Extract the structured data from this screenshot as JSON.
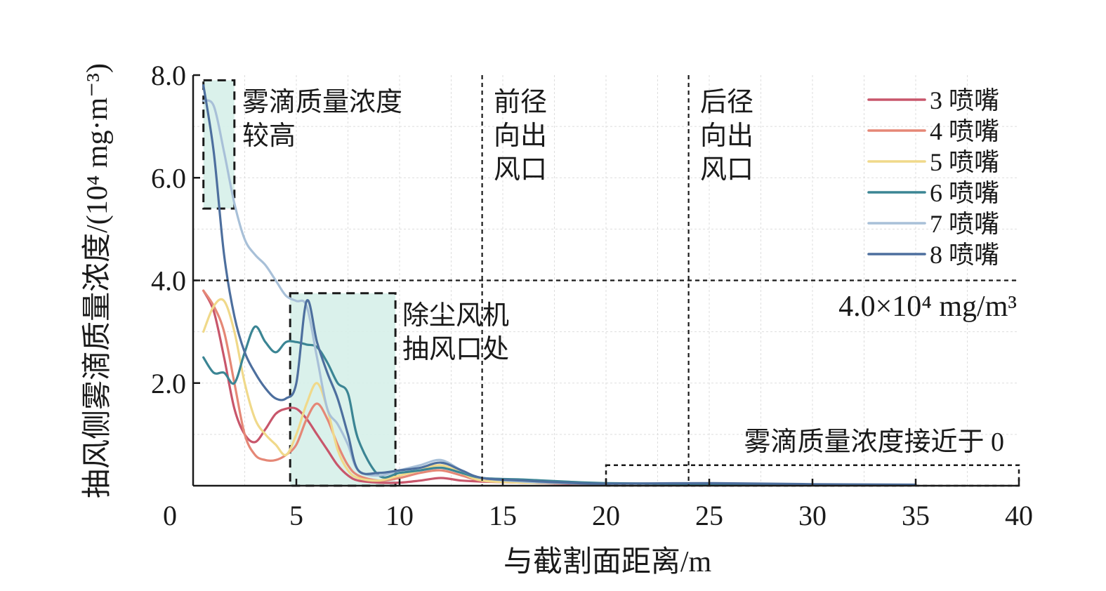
{
  "chart_data": {
    "type": "line",
    "xlabel": "与截割面距离/m",
    "ylabel": "抽风侧雾滴质量浓度/(10⁴ mg·m⁻³)",
    "xlim": [
      0,
      40
    ],
    "ylim": [
      0,
      8
    ],
    "x_ticks": [
      "0",
      "5",
      "10",
      "15",
      "20",
      "25",
      "30",
      "35",
      "40"
    ],
    "y_ticks": [
      "2.0",
      "4.0",
      "6.0",
      "8.0"
    ],
    "y_tick_values": [
      2,
      4,
      6,
      8
    ],
    "grid": true,
    "legend_position": "top-right",
    "series": [
      {
        "name": "3 喷嘴",
        "color": "#c8566b",
        "x": [
          0.5,
          1,
          1.5,
          2,
          2.5,
          3,
          3.5,
          4,
          4.5,
          5,
          5.5,
          6,
          6.5,
          7,
          7.5,
          8,
          9,
          10,
          11,
          12,
          13,
          14,
          16,
          18,
          20
        ],
        "y": [
          3.8,
          3.4,
          2.5,
          1.5,
          1.0,
          0.85,
          1.1,
          1.4,
          1.5,
          1.5,
          1.3,
          1.0,
          0.7,
          0.4,
          0.2,
          0.1,
          0.06,
          0.06,
          0.1,
          0.15,
          0.1,
          0.08,
          0.06,
          0.04,
          0.03
        ]
      },
      {
        "name": "4 喷嘴",
        "color": "#e58776",
        "x": [
          0.5,
          1,
          1.5,
          2,
          2.5,
          3,
          3.5,
          4,
          4.5,
          5,
          5.5,
          6,
          6.5,
          7,
          7.5,
          8,
          9,
          10,
          11,
          12,
          13,
          14,
          16,
          18,
          20
        ],
        "y": [
          3.8,
          3.5,
          3.0,
          2.0,
          1.0,
          0.6,
          0.5,
          0.5,
          0.6,
          0.8,
          1.3,
          1.6,
          1.3,
          0.8,
          0.4,
          0.2,
          0.1,
          0.15,
          0.25,
          0.3,
          0.2,
          0.1,
          0.08,
          0.06,
          0.03
        ]
      },
      {
        "name": "5 喷嘴",
        "color": "#f0d98a",
        "x": [
          0.5,
          1,
          1.5,
          2,
          2.5,
          3,
          3.5,
          4,
          4.5,
          5,
          5.5,
          6,
          6.5,
          7,
          7.5,
          8,
          9,
          10,
          11,
          12,
          13,
          14,
          16,
          18,
          20
        ],
        "y": [
          3.0,
          3.5,
          3.6,
          3.0,
          2.0,
          1.3,
          1.0,
          0.8,
          0.6,
          1.0,
          1.6,
          2.0,
          1.5,
          0.7,
          0.3,
          0.15,
          0.1,
          0.2,
          0.3,
          0.4,
          0.25,
          0.1,
          0.06,
          0.05,
          0.03
        ]
      },
      {
        "name": "6 喷嘴",
        "color": "#3b8594",
        "x": [
          0.5,
          1,
          1.5,
          2,
          2.5,
          3,
          3.5,
          4,
          4.5,
          5,
          5.5,
          6,
          6.5,
          7,
          7.5,
          8,
          9,
          10,
          11,
          12,
          13,
          14,
          16,
          18,
          20,
          25,
          30
        ],
        "y": [
          2.5,
          2.2,
          2.2,
          2.0,
          2.6,
          3.1,
          2.8,
          2.6,
          2.8,
          2.8,
          2.75,
          2.7,
          2.4,
          2.0,
          1.8,
          0.9,
          0.2,
          0.25,
          0.3,
          0.35,
          0.25,
          0.15,
          0.12,
          0.08,
          0.05,
          0.03,
          0.02
        ]
      },
      {
        "name": "7 喷嘴",
        "color": "#a8c0d8",
        "x": [
          0.5,
          1,
          1.5,
          2,
          2.5,
          3,
          3.5,
          4,
          4.5,
          5,
          5.5,
          6,
          6.5,
          7,
          7.5,
          8,
          9,
          10,
          11,
          12,
          13,
          14,
          16,
          18,
          20
        ],
        "y": [
          7.5,
          7.4,
          6.5,
          5.5,
          4.8,
          4.5,
          4.3,
          4.0,
          3.7,
          3.6,
          3.5,
          2.5,
          1.5,
          1.2,
          0.8,
          0.3,
          0.2,
          0.3,
          0.4,
          0.5,
          0.3,
          0.15,
          0.08,
          0.05,
          0.03
        ]
      },
      {
        "name": "8 喷嘴",
        "color": "#4d6f9e",
        "x": [
          0.5,
          1,
          1.5,
          2,
          2.5,
          3,
          3.5,
          4,
          4.5,
          5,
          5.5,
          6,
          6.5,
          7,
          7.5,
          8,
          9,
          10,
          11,
          12,
          13,
          14,
          16,
          18,
          20,
          25,
          30,
          35
        ],
        "y": [
          7.8,
          6.5,
          4.5,
          3.3,
          2.6,
          2.2,
          1.9,
          1.7,
          1.7,
          2.0,
          3.6,
          2.8,
          2.2,
          1.7,
          1.0,
          0.3,
          0.25,
          0.3,
          0.35,
          0.45,
          0.3,
          0.15,
          0.1,
          0.06,
          0.04,
          0.05,
          0.03,
          0.02
        ]
      }
    ],
    "reference_lines": {
      "horizontal_y": 4.0,
      "vertical_x": [
        14,
        24
      ]
    },
    "regions": [
      {
        "x0": 0.5,
        "x1": 2,
        "y0": 5.4,
        "y1": 7.9,
        "shaded": true
      },
      {
        "x0": 4.7,
        "x1": 9.8,
        "y0": 0,
        "y1": 3.75,
        "shaded": true
      },
      {
        "x0": 20,
        "x1": 40,
        "y0": 0,
        "y1": 0.4,
        "shaded": false
      }
    ],
    "annotations": {
      "high_concentration": [
        "雾滴质量浓度",
        "较高"
      ],
      "fan_inlet": [
        "除尘风机",
        "抽风口处"
      ],
      "front_outlet": [
        "前径",
        "向出",
        "风口"
      ],
      "rear_outlet": [
        "后径",
        "向出",
        "风口"
      ],
      "near_zero": "雾滴质量浓度接近于 0",
      "threshold": "4.0×10⁴ mg/m³"
    }
  }
}
